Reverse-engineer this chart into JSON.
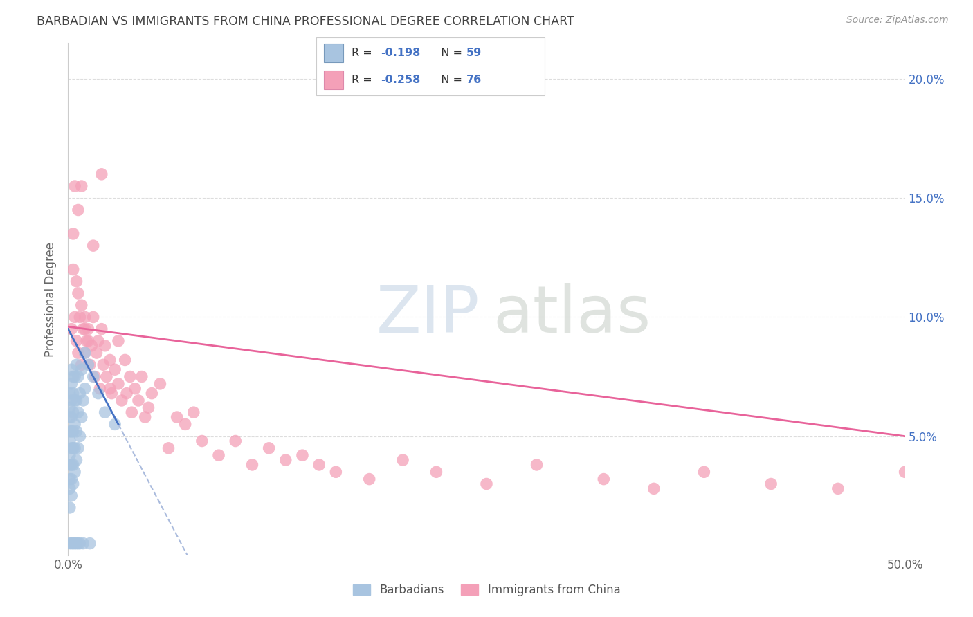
{
  "title": "BARBADIAN VS IMMIGRANTS FROM CHINA PROFESSIONAL DEGREE CORRELATION CHART",
  "source": "Source: ZipAtlas.com",
  "ylabel": "Professional Degree",
  "right_yticks": [
    "20.0%",
    "15.0%",
    "10.0%",
    "5.0%"
  ],
  "right_ytick_vals": [
    0.2,
    0.15,
    0.1,
    0.05
  ],
  "xlim": [
    0.0,
    0.5
  ],
  "ylim": [
    0.0,
    0.215
  ],
  "barbadian_color": "#a8c4e0",
  "barbadian_edge": "#7799bb",
  "china_color": "#f4a0b8",
  "china_edge": "#dd88aa",
  "trendline_blue_color": "#4472C4",
  "trendline_pink_color": "#E8639A",
  "trendline_blue_dashed_color": "#aabbdd",
  "background_color": "#ffffff",
  "grid_color": "#dddddd",
  "title_color": "#444444",
  "right_axis_color": "#4472C4",
  "legend_r_color": "#333333",
  "legend_val_color": "#4472C4",
  "watermark_zip_color": "#c8d8e8",
  "watermark_atlas_color": "#c0c8d0",
  "bottom_legend_color": "#555555",
  "barbadians_x": [
    0.001,
    0.001,
    0.001,
    0.001,
    0.001,
    0.001,
    0.001,
    0.001,
    0.001,
    0.001,
    0.002,
    0.002,
    0.002,
    0.002,
    0.002,
    0.002,
    0.002,
    0.002,
    0.002,
    0.003,
    0.003,
    0.003,
    0.003,
    0.003,
    0.003,
    0.003,
    0.004,
    0.004,
    0.004,
    0.004,
    0.004,
    0.005,
    0.005,
    0.005,
    0.005,
    0.006,
    0.006,
    0.006,
    0.007,
    0.007,
    0.008,
    0.008,
    0.009,
    0.01,
    0.01,
    0.012,
    0.015,
    0.018,
    0.022,
    0.028,
    0.001,
    0.002,
    0.003,
    0.004,
    0.005,
    0.006,
    0.007,
    0.009,
    0.013
  ],
  "barbadians_y": [
    0.02,
    0.028,
    0.032,
    0.038,
    0.042,
    0.048,
    0.052,
    0.058,
    0.062,
    0.068,
    0.025,
    0.032,
    0.038,
    0.045,
    0.052,
    0.058,
    0.065,
    0.072,
    0.078,
    0.03,
    0.038,
    0.045,
    0.052,
    0.06,
    0.068,
    0.075,
    0.035,
    0.045,
    0.055,
    0.065,
    0.075,
    0.04,
    0.052,
    0.065,
    0.08,
    0.045,
    0.06,
    0.075,
    0.05,
    0.068,
    0.058,
    0.078,
    0.065,
    0.07,
    0.085,
    0.08,
    0.075,
    0.068,
    0.06,
    0.055,
    0.005,
    0.005,
    0.005,
    0.005,
    0.005,
    0.005,
    0.005,
    0.005,
    0.005
  ],
  "china_x": [
    0.002,
    0.003,
    0.003,
    0.004,
    0.005,
    0.005,
    0.006,
    0.006,
    0.007,
    0.008,
    0.008,
    0.009,
    0.01,
    0.01,
    0.011,
    0.012,
    0.013,
    0.014,
    0.015,
    0.016,
    0.017,
    0.018,
    0.019,
    0.02,
    0.021,
    0.022,
    0.023,
    0.025,
    0.026,
    0.028,
    0.03,
    0.032,
    0.034,
    0.035,
    0.037,
    0.038,
    0.04,
    0.042,
    0.044,
    0.046,
    0.048,
    0.05,
    0.055,
    0.06,
    0.065,
    0.07,
    0.075,
    0.08,
    0.09,
    0.1,
    0.11,
    0.12,
    0.13,
    0.14,
    0.15,
    0.16,
    0.18,
    0.2,
    0.22,
    0.25,
    0.28,
    0.32,
    0.35,
    0.38,
    0.42,
    0.46,
    0.5,
    0.004,
    0.006,
    0.008,
    0.01,
    0.012,
    0.015,
    0.02,
    0.025,
    0.03
  ],
  "china_y": [
    0.095,
    0.12,
    0.135,
    0.1,
    0.09,
    0.115,
    0.085,
    0.11,
    0.1,
    0.08,
    0.105,
    0.095,
    0.085,
    0.1,
    0.09,
    0.095,
    0.08,
    0.088,
    0.13,
    0.075,
    0.085,
    0.09,
    0.07,
    0.095,
    0.08,
    0.088,
    0.075,
    0.082,
    0.068,
    0.078,
    0.072,
    0.065,
    0.082,
    0.068,
    0.075,
    0.06,
    0.07,
    0.065,
    0.075,
    0.058,
    0.062,
    0.068,
    0.072,
    0.045,
    0.058,
    0.055,
    0.06,
    0.048,
    0.042,
    0.048,
    0.038,
    0.045,
    0.04,
    0.042,
    0.038,
    0.035,
    0.032,
    0.04,
    0.035,
    0.03,
    0.038,
    0.032,
    0.028,
    0.035,
    0.03,
    0.028,
    0.035,
    0.155,
    0.145,
    0.155,
    0.095,
    0.09,
    0.1,
    0.16,
    0.07,
    0.09
  ],
  "pink_trend_x0": 0.0,
  "pink_trend_y0": 0.096,
  "pink_trend_x1": 0.5,
  "pink_trend_y1": 0.05,
  "blue_trend_x0": 0.0,
  "blue_trend_y0": 0.095,
  "blue_trend_x1": 0.03,
  "blue_trend_y1": 0.055,
  "blue_trend_solid_end": 0.03,
  "blue_trend_dashed_end": 0.14
}
